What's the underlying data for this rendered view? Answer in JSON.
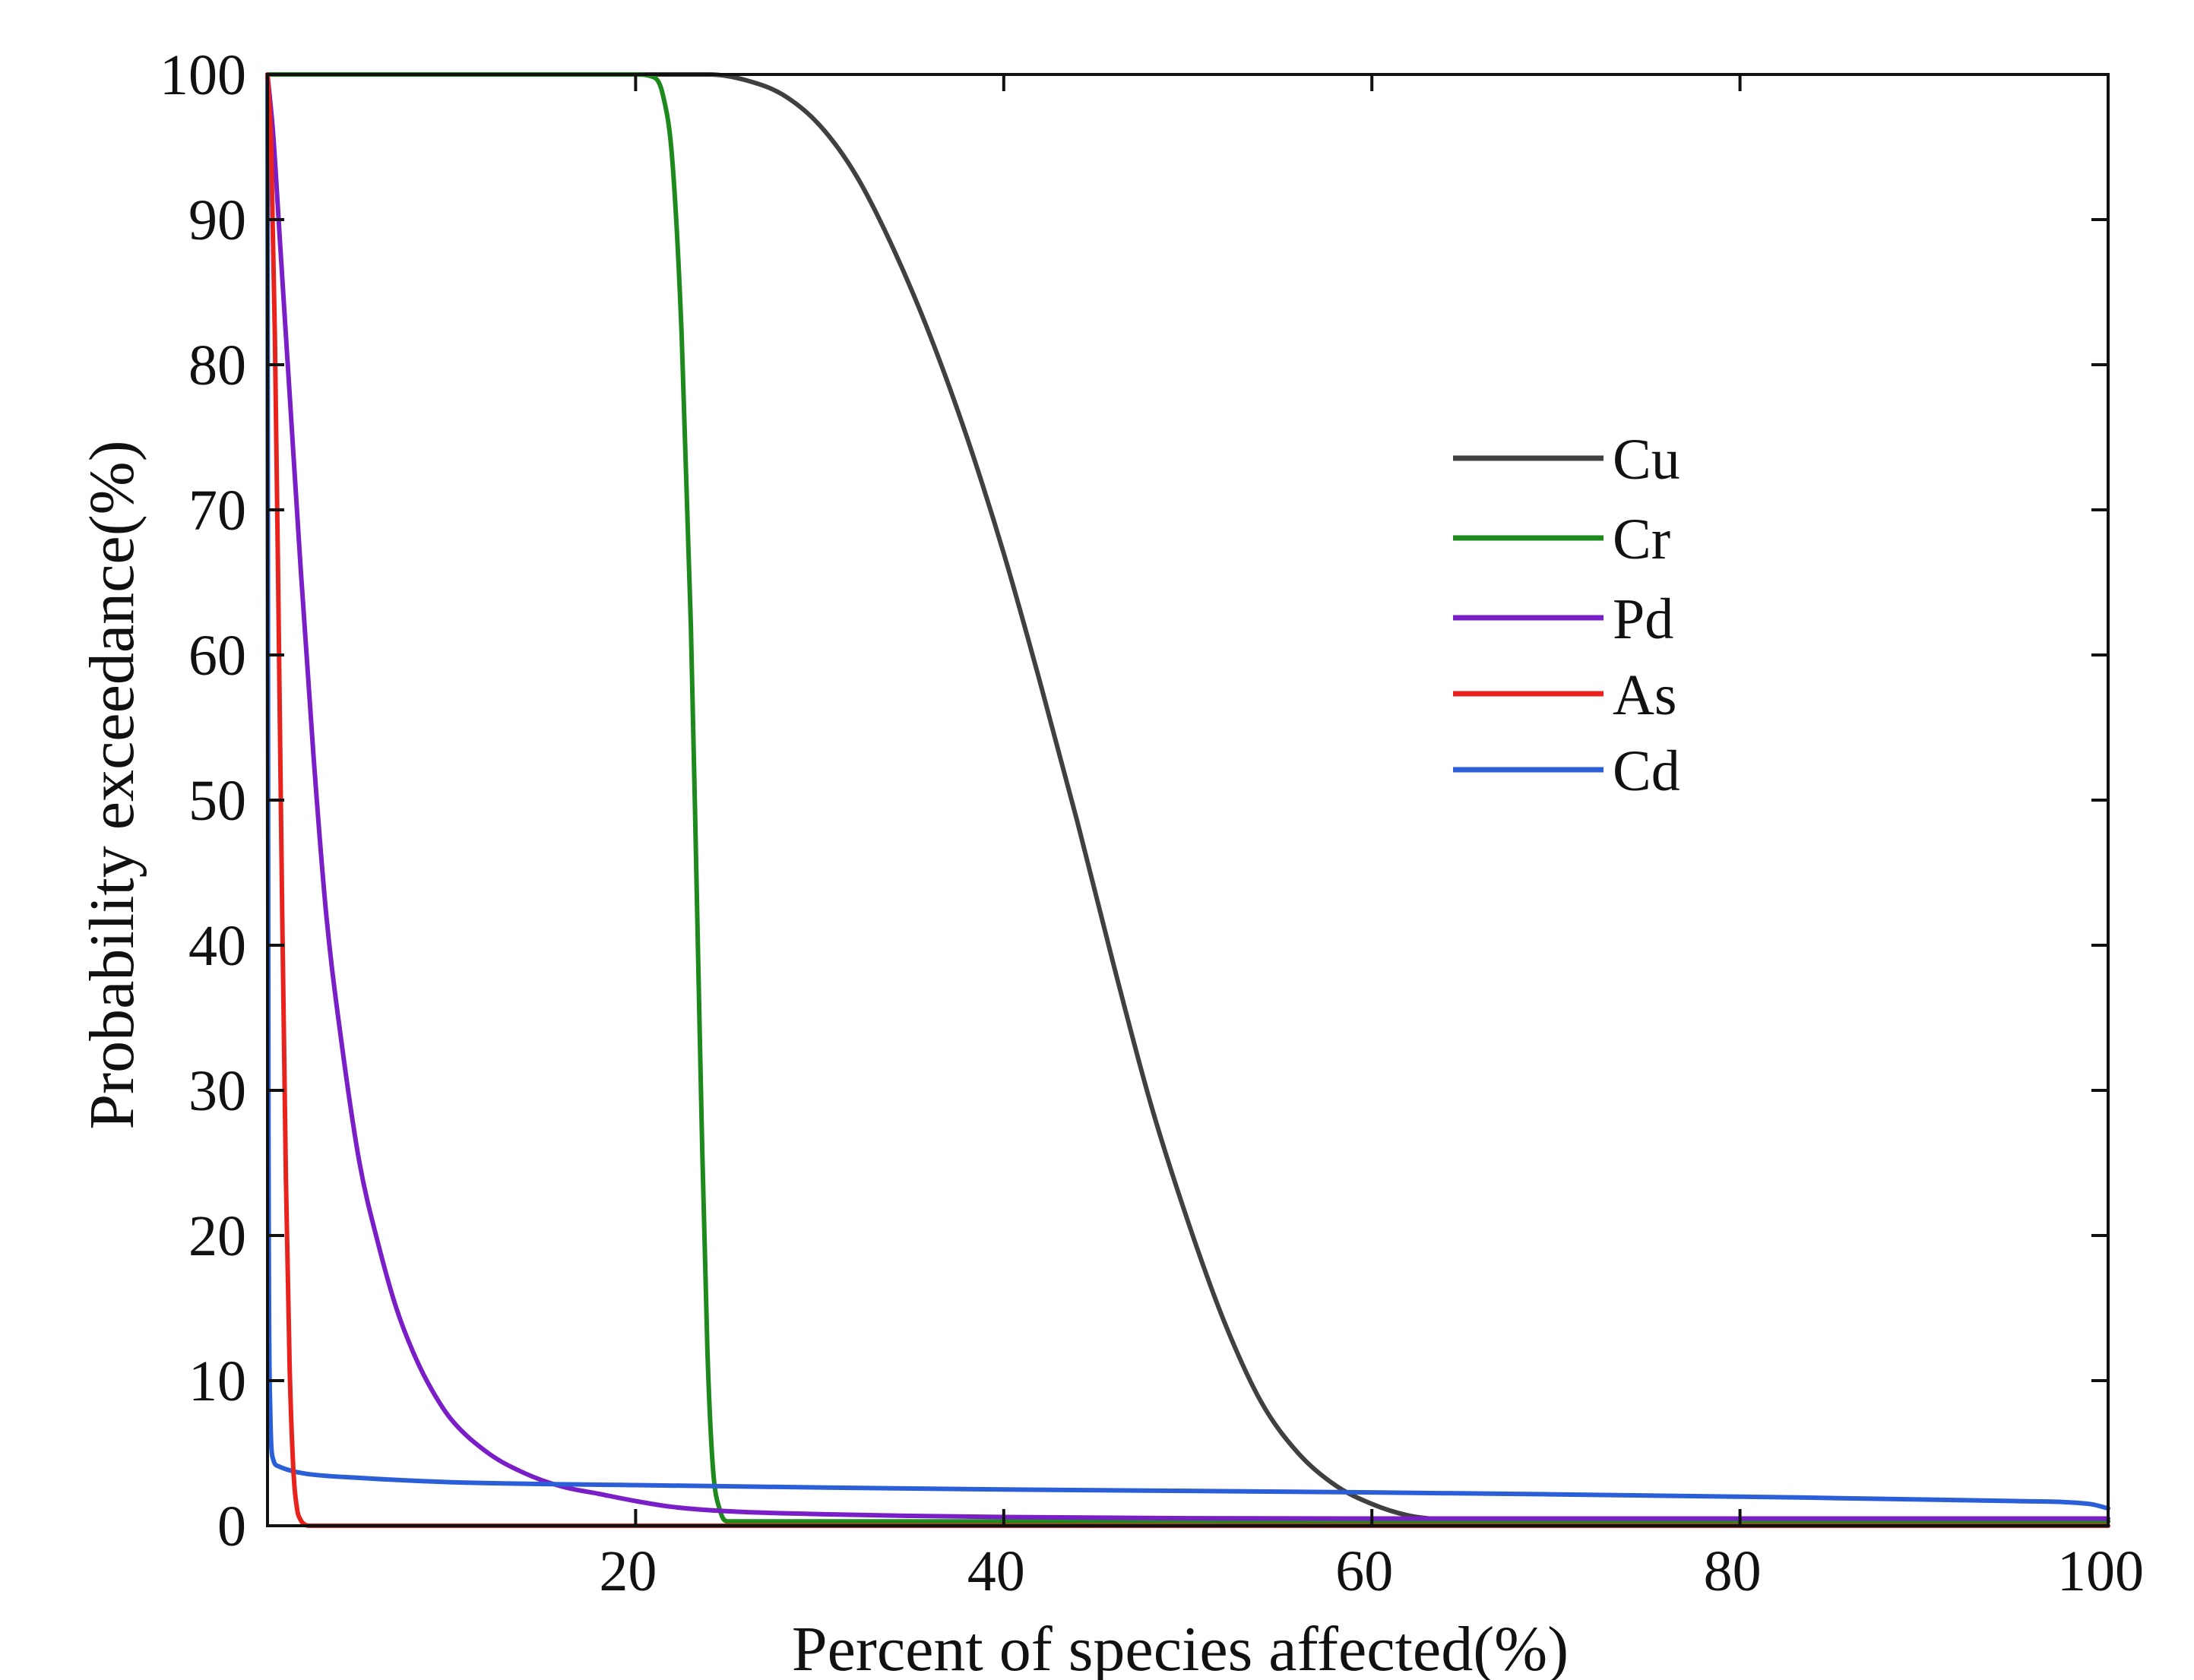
{
  "chart_data": {
    "type": "line",
    "title": "",
    "xlabel": "Percent of species affected(%)",
    "ylabel": "Probability exceedance(%)",
    "xlim": [
      0,
      100
    ],
    "ylim": [
      0,
      100
    ],
    "x_ticks": [
      20,
      40,
      60,
      80,
      100
    ],
    "x_tick_labels": [
      "20",
      "40",
      "60",
      "80",
      "100"
    ],
    "y_ticks": [
      0,
      10,
      20,
      30,
      40,
      50,
      60,
      70,
      80,
      90,
      100
    ],
    "y_tick_labels": [
      "0",
      "10",
      "20",
      "30",
      "40",
      "50",
      "60",
      "70",
      "80",
      "90",
      "100"
    ],
    "grid": false,
    "legend_position": "upper-right",
    "series": [
      {
        "name": "Cu",
        "color": "#404040",
        "x": [
          0,
          20,
          24,
          26,
          28,
          30,
          32,
          34,
          36,
          38,
          40,
          42,
          44,
          46,
          48,
          50,
          52,
          54,
          56,
          58,
          60,
          62,
          64,
          66,
          70,
          80,
          90,
          100
        ],
        "y": [
          100,
          100,
          100,
          99.6,
          98.6,
          96.5,
          93,
          88,
          82,
          75,
          67,
          58,
          48.5,
          38.5,
          29,
          21,
          14,
          8.5,
          5,
          2.8,
          1.5,
          0.7,
          0.4,
          0.3,
          0.3,
          0.3,
          0.3,
          0.3
        ]
      },
      {
        "name": "Cr",
        "color": "#1e8a1e",
        "x": [
          0,
          20,
          21,
          21.5,
          22,
          22.5,
          23,
          23.3,
          23.6,
          23.9,
          24.2,
          24.6,
          25,
          30,
          50,
          70,
          100
        ],
        "y": [
          100,
          100,
          99.8,
          98.5,
          94,
          82,
          62,
          45,
          27,
          12,
          4,
          1,
          0.3,
          0.3,
          0.3,
          0.3,
          0.3
        ]
      },
      {
        "name": "Pd",
        "color": "#7a1fc8",
        "x": [
          0,
          0.3,
          0.7,
          1.2,
          1.8,
          2.5,
          3.2,
          4,
          5,
          6,
          7,
          8,
          9,
          10,
          12,
          14,
          16,
          18,
          20,
          22,
          25,
          30,
          40,
          60,
          80,
          100
        ],
        "y": [
          100,
          96,
          88,
          78,
          66,
          53,
          42,
          33.5,
          25,
          19.5,
          15,
          11.7,
          9.2,
          7.3,
          5,
          3.6,
          2.7,
          2.2,
          1.7,
          1.3,
          1.0,
          0.8,
          0.6,
          0.5,
          0.5,
          0.5
        ]
      },
      {
        "name": "As",
        "color": "#e8231d",
        "x": [
          0,
          0.2,
          0.4,
          0.6,
          0.8,
          1.0,
          1.2,
          1.4,
          1.6,
          1.8,
          2.0,
          2.3,
          3,
          100
        ],
        "y": [
          100,
          95,
          82,
          63,
          42,
          24,
          11,
          4,
          1.2,
          0.4,
          0.1,
          0,
          0,
          0
        ]
      },
      {
        "name": "Cd",
        "color": "#2a5fd8",
        "x": [
          0,
          0.05,
          0.15,
          0.3,
          0.6,
          1,
          2,
          5,
          10,
          20,
          40,
          60,
          80,
          95,
          99,
          100
        ],
        "y": [
          100,
          30,
          8,
          4.6,
          4.1,
          3.9,
          3.6,
          3.3,
          3.0,
          2.8,
          2.5,
          2.3,
          2.0,
          1.7,
          1.5,
          1.2
        ]
      }
    ]
  }
}
